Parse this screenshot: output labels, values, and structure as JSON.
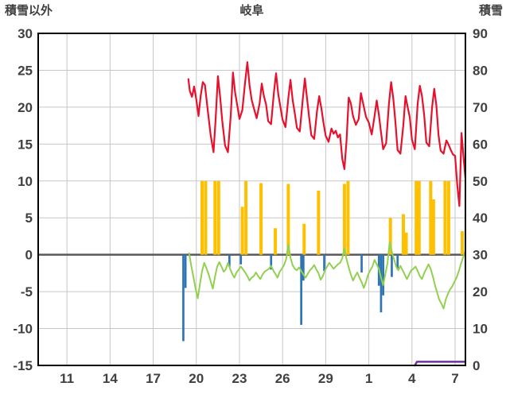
{
  "header": {
    "title": "岐阜",
    "left_label": "積雪以外",
    "right_label": "積雪"
  },
  "chart_data": {
    "type": "line",
    "title": "岐阜",
    "left_axis_title": "積雪以外",
    "right_axis_title": "積雪",
    "x_domain": [
      9,
      38.72
    ],
    "x_ticks": [
      {
        "label": "11",
        "day": 11
      },
      {
        "label": "14",
        "day": 14
      },
      {
        "label": "17",
        "day": 17
      },
      {
        "label": "20",
        "day": 20
      },
      {
        "label": "23",
        "day": 23
      },
      {
        "label": "26",
        "day": 26
      },
      {
        "label": "29",
        "day": 29
      },
      {
        "label": "1",
        "day": 32
      },
      {
        "label": "4",
        "day": 35
      },
      {
        "label": "7",
        "day": 38
      }
    ],
    "y_left": {
      "min": -15,
      "max": 30,
      "step": 5,
      "ticks": [
        30,
        25,
        20,
        15,
        10,
        5,
        0,
        -5,
        -10,
        -15
      ]
    },
    "y_right": {
      "min": 0,
      "max": 90,
      "step": 10,
      "ticks": [
        90,
        80,
        70,
        60,
        50,
        40,
        30,
        20,
        10,
        0
      ]
    },
    "colors": {
      "red": "#e8112d",
      "green": "#92d050",
      "yellow": "#ffc000",
      "blue": "#2e75b6",
      "purple": "#7030a0",
      "grid": "#c6c6c6",
      "zero_line": "#595959",
      "axis": "#000000",
      "tick_text": "#404040"
    },
    "series": [
      {
        "name": "yellow-bars",
        "type": "bar",
        "axis": "left",
        "color": "#ffc000",
        "bar_width_days": 0.22,
        "points": [
          [
            20.4,
            10
          ],
          [
            20.65,
            10
          ],
          [
            21.3,
            10
          ],
          [
            21.55,
            10
          ],
          [
            23.2,
            6.5
          ],
          [
            23.45,
            10
          ],
          [
            24.5,
            9.7
          ],
          [
            25.5,
            3.6
          ],
          [
            26.4,
            9.6
          ],
          [
            27.5,
            4.2
          ],
          [
            28.5,
            8.7
          ],
          [
            30.3,
            9.6
          ],
          [
            30.55,
            10
          ],
          [
            33.5,
            5.0
          ],
          [
            34.4,
            5.5
          ],
          [
            34.6,
            3.0
          ],
          [
            35.3,
            10
          ],
          [
            35.5,
            10
          ],
          [
            36.3,
            10
          ],
          [
            36.5,
            7.5
          ],
          [
            37.3,
            10
          ],
          [
            37.55,
            10
          ],
          [
            38.5,
            3.2
          ]
        ]
      },
      {
        "name": "blue-bars",
        "type": "bar",
        "axis": "left",
        "color": "#2e75b6",
        "bar_width_days": 0.15,
        "points": [
          [
            19.1,
            -11.7
          ],
          [
            19.25,
            -4.5
          ],
          [
            22.3,
            -1.6
          ],
          [
            23.1,
            -1.3
          ],
          [
            25.2,
            -2.0
          ],
          [
            27.3,
            -9.5
          ],
          [
            27.45,
            -3.5
          ],
          [
            28.9,
            -2.2
          ],
          [
            31.5,
            -2.4
          ],
          [
            32.7,
            -4.2
          ],
          [
            32.85,
            -7.8
          ],
          [
            33.0,
            -5.5
          ],
          [
            33.6,
            -3.0
          ],
          [
            34.0,
            -2.0
          ]
        ]
      },
      {
        "name": "green-line",
        "type": "line",
        "axis": "left",
        "color": "#92d050",
        "width": 2,
        "points": [
          [
            19.5,
            0.2
          ],
          [
            19.65,
            -1.5
          ],
          [
            19.8,
            -3.0
          ],
          [
            19.95,
            -4.6
          ],
          [
            20.1,
            -5.9
          ],
          [
            20.25,
            -4.0
          ],
          [
            20.4,
            -2.2
          ],
          [
            20.55,
            -1.1
          ],
          [
            20.7,
            -1.8
          ],
          [
            20.85,
            -2.6
          ],
          [
            21.0,
            -3.6
          ],
          [
            21.15,
            -4.6
          ],
          [
            21.3,
            -3.0
          ],
          [
            21.45,
            -1.6
          ],
          [
            21.6,
            -1.0
          ],
          [
            21.75,
            -1.6
          ],
          [
            21.9,
            -2.3
          ],
          [
            22.05,
            -2.0
          ],
          [
            22.2,
            -1.1
          ],
          [
            22.35,
            -1.9
          ],
          [
            22.5,
            -2.6
          ],
          [
            22.65,
            -3.1
          ],
          [
            22.8,
            -2.4
          ],
          [
            22.95,
            -2.0
          ],
          [
            23.1,
            -1.6
          ],
          [
            23.25,
            -2.0
          ],
          [
            23.4,
            -2.4
          ],
          [
            23.55,
            -2.9
          ],
          [
            23.7,
            -3.5
          ],
          [
            23.85,
            -3.1
          ],
          [
            24.0,
            -2.9
          ],
          [
            24.15,
            -2.4
          ],
          [
            24.3,
            -2.9
          ],
          [
            24.45,
            -3.3
          ],
          [
            24.6,
            -2.7
          ],
          [
            24.75,
            -2.3
          ],
          [
            24.9,
            -2.1
          ],
          [
            25.05,
            -1.9
          ],
          [
            25.2,
            -1.5
          ],
          [
            25.35,
            -2.1
          ],
          [
            25.5,
            -2.6
          ],
          [
            25.65,
            -3.1
          ],
          [
            25.8,
            -2.3
          ],
          [
            25.95,
            -1.9
          ],
          [
            26.1,
            -1.4
          ],
          [
            26.25,
            -0.6
          ],
          [
            26.4,
            1.4
          ],
          [
            26.55,
            -0.4
          ],
          [
            26.7,
            -1.4
          ],
          [
            26.85,
            -1.9
          ],
          [
            27.0,
            -2.1
          ],
          [
            27.15,
            -1.7
          ],
          [
            27.3,
            -2.2
          ],
          [
            27.45,
            -2.7
          ],
          [
            27.6,
            -3.1
          ],
          [
            27.75,
            -2.6
          ],
          [
            27.9,
            -2.1
          ],
          [
            28.05,
            -1.8
          ],
          [
            28.2,
            -1.4
          ],
          [
            28.35,
            -2.0
          ],
          [
            28.5,
            -2.5
          ],
          [
            28.65,
            -3.4
          ],
          [
            28.8,
            -2.9
          ],
          [
            28.95,
            -2.1
          ],
          [
            29.1,
            -1.6
          ],
          [
            29.25,
            -1.1
          ],
          [
            29.4,
            -1.5
          ],
          [
            29.55,
            -1.9
          ],
          [
            29.7,
            -1.6
          ],
          [
            29.85,
            -1.3
          ],
          [
            30.0,
            -1.1
          ],
          [
            30.15,
            -0.5
          ],
          [
            30.3,
            0.9
          ],
          [
            30.45,
            -0.6
          ],
          [
            30.6,
            -1.7
          ],
          [
            30.75,
            -2.7
          ],
          [
            30.9,
            -3.5
          ],
          [
            31.05,
            -2.9
          ],
          [
            31.2,
            -2.4
          ],
          [
            31.35,
            -3.1
          ],
          [
            31.5,
            -3.7
          ],
          [
            31.65,
            -4.5
          ],
          [
            31.8,
            -3.7
          ],
          [
            31.95,
            -2.7
          ],
          [
            32.1,
            -2.1
          ],
          [
            32.25,
            -1.6
          ],
          [
            32.4,
            -0.7
          ],
          [
            32.55,
            -1.3
          ],
          [
            32.7,
            -1.9
          ],
          [
            32.85,
            -3.1
          ],
          [
            33.0,
            -4.1
          ],
          [
            33.15,
            -2.6
          ],
          [
            33.3,
            -1.1
          ],
          [
            33.45,
            1.7
          ],
          [
            33.6,
            0.4
          ],
          [
            33.75,
            -0.6
          ],
          [
            33.9,
            -1.6
          ],
          [
            34.05,
            -2.1
          ],
          [
            34.2,
            -1.5
          ],
          [
            34.35,
            -2.1
          ],
          [
            34.5,
            -2.7
          ],
          [
            34.65,
            -3.3
          ],
          [
            34.8,
            -2.7
          ],
          [
            34.95,
            -2.1
          ],
          [
            35.1,
            -1.9
          ],
          [
            35.25,
            -1.6
          ],
          [
            35.4,
            -2.2
          ],
          [
            35.55,
            -2.9
          ],
          [
            35.7,
            -3.3
          ],
          [
            35.85,
            -2.5
          ],
          [
            36.0,
            -1.9
          ],
          [
            36.15,
            -1.3
          ],
          [
            36.3,
            -1.9
          ],
          [
            36.45,
            -2.9
          ],
          [
            36.6,
            -4.1
          ],
          [
            36.75,
            -5.1
          ],
          [
            36.9,
            -6.1
          ],
          [
            37.05,
            -6.6
          ],
          [
            37.2,
            -7.3
          ],
          [
            37.35,
            -6.1
          ],
          [
            37.5,
            -5.3
          ],
          [
            37.65,
            -4.7
          ],
          [
            37.8,
            -4.3
          ],
          [
            37.95,
            -3.7
          ],
          [
            38.1,
            -3.1
          ],
          [
            38.25,
            -2.3
          ],
          [
            38.4,
            -1.3
          ],
          [
            38.55,
            -0.4
          ],
          [
            38.72,
            0.5
          ]
        ]
      },
      {
        "name": "red-line",
        "type": "line",
        "axis": "left",
        "color": "#e8112d",
        "width": 2.2,
        "points": [
          [
            19.45,
            23.8
          ],
          [
            19.55,
            22.2
          ],
          [
            19.7,
            21.4
          ],
          [
            19.85,
            22.8
          ],
          [
            20.0,
            21.0
          ],
          [
            20.15,
            18.8
          ],
          [
            20.3,
            21.5
          ],
          [
            20.45,
            23.4
          ],
          [
            20.6,
            23.0
          ],
          [
            20.8,
            19.5
          ],
          [
            21.0,
            16.2
          ],
          [
            21.2,
            13.9
          ],
          [
            21.35,
            18.5
          ],
          [
            21.5,
            24.2
          ],
          [
            21.65,
            21.5
          ],
          [
            21.8,
            18.2
          ],
          [
            22.0,
            14.8
          ],
          [
            22.2,
            13.9
          ],
          [
            22.4,
            19.0
          ],
          [
            22.55,
            24.7
          ],
          [
            22.7,
            22.0
          ],
          [
            22.85,
            20.2
          ],
          [
            23.0,
            18.4
          ],
          [
            23.2,
            19.6
          ],
          [
            23.4,
            23.5
          ],
          [
            23.55,
            26.1
          ],
          [
            23.7,
            23.0
          ],
          [
            23.85,
            21.0
          ],
          [
            24.0,
            19.9
          ],
          [
            24.2,
            18.5
          ],
          [
            24.4,
            20.5
          ],
          [
            24.55,
            23.2
          ],
          [
            24.7,
            21.5
          ],
          [
            24.85,
            20.4
          ],
          [
            25.0,
            18.1
          ],
          [
            25.2,
            17.7
          ],
          [
            25.4,
            22.0
          ],
          [
            25.55,
            24.6
          ],
          [
            25.7,
            21.8
          ],
          [
            25.85,
            20.0
          ],
          [
            26.0,
            18.3
          ],
          [
            26.2,
            17.3
          ],
          [
            26.4,
            21.2
          ],
          [
            26.55,
            23.7
          ],
          [
            26.7,
            21.0
          ],
          [
            26.85,
            19.2
          ],
          [
            27.0,
            17.2
          ],
          [
            27.2,
            16.7
          ],
          [
            27.4,
            21.0
          ],
          [
            27.55,
            23.9
          ],
          [
            27.7,
            21.2
          ],
          [
            27.85,
            18.6
          ],
          [
            28.0,
            16.2
          ],
          [
            28.2,
            15.7
          ],
          [
            28.4,
            19.5
          ],
          [
            28.55,
            21.5
          ],
          [
            28.7,
            19.8
          ],
          [
            28.85,
            17.8
          ],
          [
            29.0,
            16.1
          ],
          [
            29.2,
            15.3
          ],
          [
            29.4,
            17.1
          ],
          [
            29.55,
            16.4
          ],
          [
            29.7,
            16.8
          ],
          [
            29.85,
            15.9
          ],
          [
            30.0,
            16.3
          ],
          [
            30.15,
            13.0
          ],
          [
            30.3,
            11.6
          ],
          [
            30.45,
            15.5
          ],
          [
            30.6,
            21.3
          ],
          [
            30.75,
            20.5
          ],
          [
            30.9,
            18.8
          ],
          [
            31.1,
            17.6
          ],
          [
            31.3,
            18.4
          ],
          [
            31.45,
            21.9
          ],
          [
            31.6,
            20.5
          ],
          [
            31.8,
            18.7
          ],
          [
            32.0,
            17.9
          ],
          [
            32.2,
            16.3
          ],
          [
            32.4,
            18.8
          ],
          [
            32.55,
            20.9
          ],
          [
            32.7,
            19.0
          ],
          [
            32.85,
            16.6
          ],
          [
            33.0,
            14.3
          ],
          [
            33.2,
            15.1
          ],
          [
            33.4,
            20.5
          ],
          [
            33.55,
            23.4
          ],
          [
            33.7,
            21.2
          ],
          [
            33.85,
            18.0
          ],
          [
            34.0,
            14.2
          ],
          [
            34.2,
            13.7
          ],
          [
            34.4,
            17.5
          ],
          [
            34.55,
            21.5
          ],
          [
            34.7,
            20.0
          ],
          [
            34.85,
            18.6
          ],
          [
            35.0,
            15.6
          ],
          [
            35.2,
            14.3
          ],
          [
            35.4,
            20.5
          ],
          [
            35.55,
            22.9
          ],
          [
            35.7,
            21.5
          ],
          [
            35.85,
            19.0
          ],
          [
            36.0,
            15.2
          ],
          [
            36.2,
            14.7
          ],
          [
            36.4,
            20.0
          ],
          [
            36.55,
            22.5
          ],
          [
            36.7,
            20.2
          ],
          [
            36.85,
            16.2
          ],
          [
            37.0,
            14.1
          ],
          [
            37.2,
            13.7
          ],
          [
            37.4,
            15.5
          ],
          [
            37.55,
            14.9
          ],
          [
            37.7,
            14.2
          ],
          [
            37.85,
            13.6
          ],
          [
            38.0,
            13.4
          ],
          [
            38.15,
            9.5
          ],
          [
            38.3,
            6.6
          ],
          [
            38.45,
            16.5
          ],
          [
            38.6,
            13.0
          ],
          [
            38.72,
            10.4
          ]
        ]
      },
      {
        "name": "purple-line",
        "type": "line",
        "axis": "right",
        "color": "#7030a0",
        "width": 2.5,
        "points": [
          [
            35.2,
            0
          ],
          [
            35.35,
            1.0
          ],
          [
            36.0,
            1.0
          ],
          [
            37.0,
            1.0
          ],
          [
            38.0,
            1.0
          ],
          [
            38.72,
            1.0
          ]
        ]
      }
    ]
  }
}
